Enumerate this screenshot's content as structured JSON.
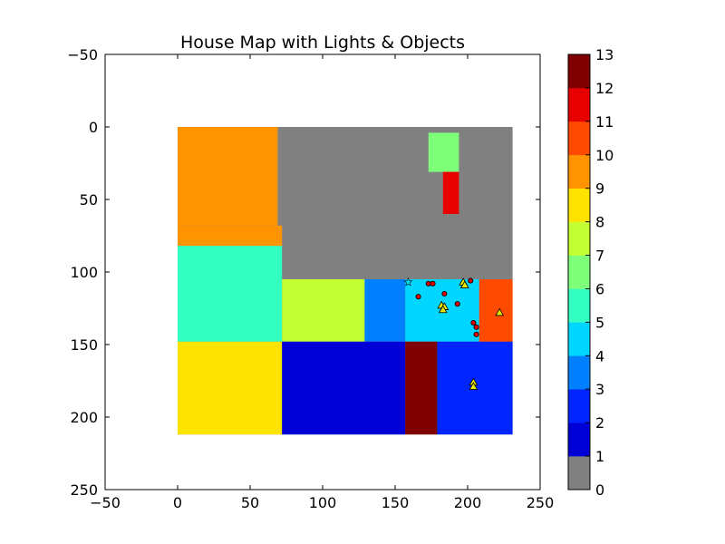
{
  "chart_data": {
    "type": "heatmap",
    "title": "House Map with Lights & Objects",
    "xlim": [
      -50,
      250
    ],
    "ylim": [
      250,
      -50
    ],
    "x_ticks": [
      -50,
      0,
      50,
      100,
      150,
      200,
      250
    ],
    "y_ticks": [
      -50,
      0,
      50,
      100,
      150,
      200,
      250
    ],
    "grid": false,
    "regions": [
      {
        "label": 0,
        "x": [
          0,
          231
        ],
        "y": [
          0,
          212
        ]
      },
      {
        "label": 9,
        "x": [
          0,
          69
        ],
        "y": [
          0,
          68
        ]
      },
      {
        "label": 9,
        "x": [
          0,
          72
        ],
        "y": [
          68,
          82
        ]
      },
      {
        "label": 6,
        "x": [
          173,
          194
        ],
        "y": [
          4,
          31
        ]
      },
      {
        "label": 11,
        "x": [
          183,
          194
        ],
        "y": [
          31,
          60
        ]
      },
      {
        "label": 5,
        "x": [
          0,
          72
        ],
        "y": [
          82,
          148
        ]
      },
      {
        "label": 7,
        "x": [
          72,
          129
        ],
        "y": [
          105,
          148
        ]
      },
      {
        "label": 3,
        "x": [
          129,
          157
        ],
        "y": [
          105,
          148
        ]
      },
      {
        "label": 4,
        "x": [
          157,
          208
        ],
        "y": [
          105,
          148
        ]
      },
      {
        "label": 10,
        "x": [
          208,
          231
        ],
        "y": [
          105,
          148
        ]
      },
      {
        "label": 8,
        "x": [
          0,
          72
        ],
        "y": [
          148,
          212
        ]
      },
      {
        "label": 1,
        "x": [
          72,
          157
        ],
        "y": [
          148,
          212
        ]
      },
      {
        "label": 13,
        "x": [
          157,
          179
        ],
        "y": [
          148,
          212
        ]
      },
      {
        "label": 2,
        "x": [
          179,
          231
        ],
        "y": [
          148,
          212
        ]
      }
    ],
    "objects": [
      {
        "x": 173,
        "y": 108
      },
      {
        "x": 176,
        "y": 108
      },
      {
        "x": 166,
        "y": 117
      },
      {
        "x": 184,
        "y": 115
      },
      {
        "x": 193,
        "y": 122
      },
      {
        "x": 202,
        "y": 106
      },
      {
        "x": 204,
        "y": 135
      },
      {
        "x": 206,
        "y": 138
      },
      {
        "x": 206,
        "y": 143
      }
    ],
    "lights": [
      {
        "x": 197,
        "y": 107
      },
      {
        "x": 198,
        "y": 109
      },
      {
        "x": 182,
        "y": 123
      },
      {
        "x": 184,
        "y": 124
      },
      {
        "x": 183,
        "y": 126
      },
      {
        "x": 222,
        "y": 128
      },
      {
        "x": 204,
        "y": 176
      },
      {
        "x": 204,
        "y": 179
      }
    ],
    "stars": [
      {
        "x": 159,
        "y": 107
      }
    ],
    "colorbar": {
      "ticks": [
        "0",
        "1",
        "2",
        "3",
        "4",
        "5",
        "6",
        "7",
        "8",
        "9",
        "10",
        "11",
        "12",
        "13"
      ],
      "colors": [
        "#808080",
        "#0000d6",
        "#0025ff",
        "#007fff",
        "#00d6ff",
        "#33ffc3",
        "#7dff7a",
        "#c3ff33",
        "#ffe300",
        "#ff9400",
        "#ff4a00",
        "#e60000",
        "#7f0000"
      ]
    },
    "label_colors": {
      "0": "#808080",
      "1": "#0000d6",
      "2": "#0025ff",
      "3": "#007fff",
      "4": "#00d6ff",
      "5": "#33ffc3",
      "6": "#7dff7a",
      "7": "#c3ff33",
      "8": "#ffe300",
      "9": "#ff9400",
      "10": "#ff4a00",
      "11": "#e60000",
      "13": "#7f0000"
    }
  }
}
